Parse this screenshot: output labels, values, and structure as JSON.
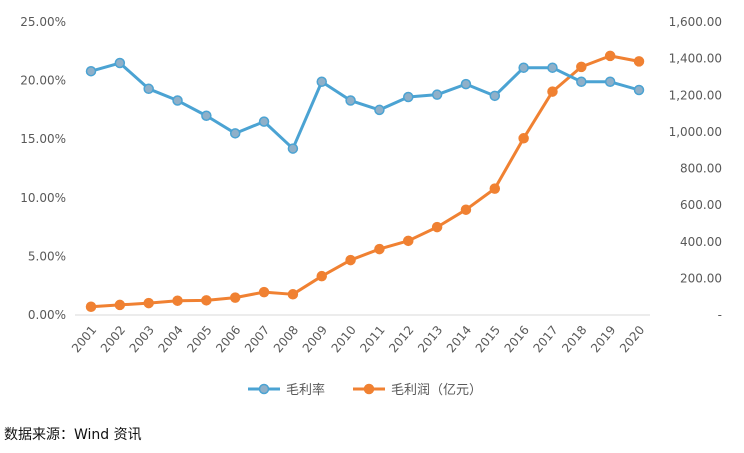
{
  "chart_data": {
    "type": "line",
    "title": "",
    "x": [
      "2001",
      "2002",
      "2003",
      "2004",
      "2005",
      "2006",
      "2007",
      "2008",
      "2009",
      "2010",
      "2011",
      "2012",
      "2013",
      "2014",
      "2015",
      "2016",
      "2017",
      "2018",
      "2019",
      "2020"
    ],
    "series": [
      {
        "name": "毛利率",
        "axis": "left",
        "color": "#4BA3D3",
        "marker_fill": "#8FB0C9",
        "values": [
          0.208,
          0.215,
          0.193,
          0.183,
          0.17,
          0.155,
          0.165,
          0.142,
          0.199,
          0.183,
          0.175,
          0.186,
          0.188,
          0.197,
          0.187,
          0.211,
          0.211,
          0.199,
          0.199,
          0.192
        ]
      },
      {
        "name": "毛利润（亿元）",
        "axis": "right",
        "color": "#F08132",
        "marker_fill": "#F08132",
        "values": [
          45,
          55,
          65,
          78,
          80,
          95,
          125,
          113,
          212,
          300,
          360,
          405,
          480,
          575,
          690,
          965,
          1220,
          1355,
          1415,
          1385
        ]
      }
    ],
    "y_left": {
      "ticks": [
        "0.00%",
        "5.00%",
        "10.00%",
        "15.00%",
        "20.00%",
        "25.00%"
      ],
      "ylim": [
        0,
        0.25
      ]
    },
    "y_right": {
      "ticks": [
        "-",
        "200.00",
        "400.00",
        "600.00",
        "800.00",
        "1,000.00",
        "1,200.00",
        "1,400.00",
        "1,600.00"
      ],
      "ylim": [
        0,
        1600
      ]
    },
    "legend_position": "bottom-center",
    "grid": false
  },
  "source_note": "数据来源：Wind 资讯"
}
